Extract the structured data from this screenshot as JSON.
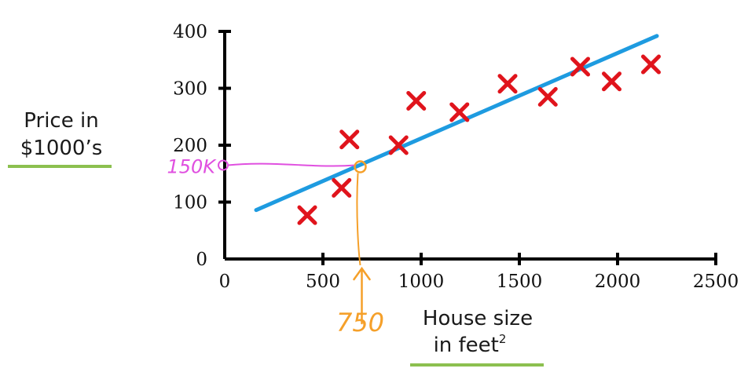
{
  "chart_data": {
    "type": "scatter",
    "xlabel": [
      "House size",
      "in feet"
    ],
    "xlabel_superscript": "2",
    "ylabel": [
      "Price in",
      "$1000’s"
    ],
    "xlim": [
      0,
      2500
    ],
    "ylim": [
      0,
      400
    ],
    "x_ticks": [
      "0",
      "500",
      "1000",
      "1500",
      "2000",
      "2500"
    ],
    "y_ticks": [
      "0",
      "100",
      "200",
      "300",
      "400"
    ],
    "grid": false,
    "points": [
      {
        "x": 420,
        "y": 77
      },
      {
        "x": 595,
        "y": 125
      },
      {
        "x": 635,
        "y": 210
      },
      {
        "x": 885,
        "y": 200
      },
      {
        "x": 975,
        "y": 278
      },
      {
        "x": 1195,
        "y": 258
      },
      {
        "x": 1440,
        "y": 308
      },
      {
        "x": 1645,
        "y": 285
      },
      {
        "x": 1810,
        "y": 338
      },
      {
        "x": 1970,
        "y": 312
      },
      {
        "x": 2170,
        "y": 342
      }
    ],
    "fit_line": {
      "x": [
        160,
        2200
      ],
      "y": [
        86,
        392
      ]
    },
    "annotation": {
      "x": 690,
      "y": 162,
      "x_text": "750",
      "y_text": "150K"
    },
    "colors": {
      "points": "#e0141c",
      "fit_line": "#1e9be0",
      "x_annotation": "#f5a02a",
      "y_annotation": "#e050e0",
      "label_underline": "#8cc04f",
      "axis": "#000000"
    }
  }
}
